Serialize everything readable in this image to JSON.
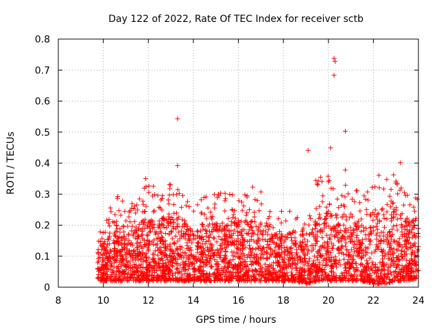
{
  "chart_data": {
    "type": "scatter",
    "title": "Day 122 of 2022, Rate Of TEC Index for receiver sctb",
    "xlabel": "GPS time / hours",
    "ylabel": "ROTI / TECUs",
    "xlim": [
      8,
      24
    ],
    "ylim": [
      0,
      0.8
    ],
    "xticks": [
      "8",
      "10",
      "12",
      "14",
      "16",
      "18",
      "20",
      "22",
      "24"
    ],
    "yticks": [
      "0",
      "0.1",
      "0.2",
      "0.3",
      "0.4",
      "0.5",
      "0.6",
      "0.7",
      "0.8"
    ],
    "grid": true,
    "marker": "plus",
    "color": "#ff0000",
    "series": [
      {
        "name": "ROTI",
        "notable_points": [
          {
            "x": 13.3,
            "y": 0.543
          },
          {
            "x": 20.25,
            "y": 0.738
          },
          {
            "x": 20.3,
            "y": 0.728
          },
          {
            "x": 20.25,
            "y": 0.683
          },
          {
            "x": 20.75,
            "y": 0.503
          },
          {
            "x": 19.1,
            "y": 0.441
          },
          {
            "x": 20.1,
            "y": 0.449
          },
          {
            "x": 23.2,
            "y": 0.401
          },
          {
            "x": 13.3,
            "y": 0.392
          },
          {
            "x": 20.75,
            "y": 0.378
          }
        ],
        "envelope": {
          "x": [
            9.75,
            10.5,
            11.0,
            11.5,
            12.0,
            12.5,
            13.0,
            13.5,
            14.0,
            14.5,
            15.0,
            15.5,
            16.0,
            16.5,
            17.0,
            17.5,
            18.0,
            18.5,
            19.0,
            19.5,
            20.0,
            20.5,
            21.0,
            21.5,
            22.0,
            22.5,
            23.0,
            23.5,
            24.0
          ],
          "upper": [
            0.19,
            0.29,
            0.3,
            0.29,
            0.37,
            0.3,
            0.35,
            0.3,
            0.26,
            0.3,
            0.31,
            0.32,
            0.32,
            0.32,
            0.33,
            0.23,
            0.28,
            0.24,
            0.2,
            0.37,
            0.36,
            0.34,
            0.35,
            0.28,
            0.37,
            0.36,
            0.38,
            0.3,
            0.29
          ],
          "typical_high": [
            0.12,
            0.2,
            0.2,
            0.2,
            0.24,
            0.22,
            0.25,
            0.22,
            0.18,
            0.2,
            0.21,
            0.21,
            0.22,
            0.22,
            0.22,
            0.17,
            0.18,
            0.17,
            0.14,
            0.24,
            0.24,
            0.23,
            0.24,
            0.2,
            0.25,
            0.25,
            0.26,
            0.22,
            0.22
          ],
          "lower": [
            0.02,
            0.02,
            0.02,
            0.02,
            0.02,
            0.02,
            0.02,
            0.02,
            0.02,
            0.02,
            0.02,
            0.02,
            0.02,
            0.02,
            0.02,
            0.02,
            0.02,
            0.02,
            0.01,
            0.02,
            0.02,
            0.02,
            0.02,
            0.02,
            0.01,
            0.01,
            0.02,
            0.02,
            0.03
          ]
        }
      }
    ]
  }
}
